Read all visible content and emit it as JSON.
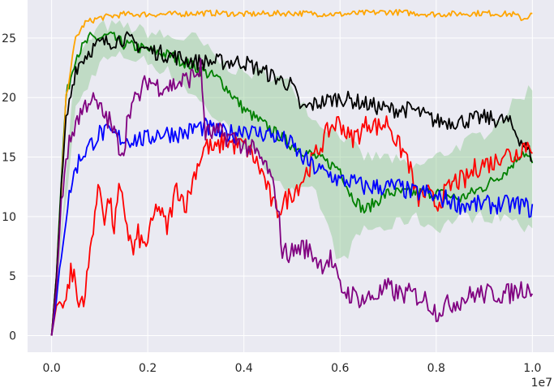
{
  "chart_data": {
    "type": "line",
    "title": "",
    "xlabel": "",
    "ylabel": "",
    "x_offset_label": "1e7",
    "xlim": [
      -0.05,
      1.045
    ],
    "ylim": [
      -1.4,
      28.2
    ],
    "x_ticks": [
      0.0,
      0.2,
      0.4,
      0.6,
      0.8,
      1.0
    ],
    "x_tick_labels": [
      "0.0",
      "0.2",
      "0.4",
      "0.6",
      "0.8",
      "1.0"
    ],
    "y_ticks": [
      0,
      5,
      10,
      15,
      20,
      25
    ],
    "y_tick_labels": [
      "0",
      "5",
      "10",
      "15",
      "20",
      "25"
    ],
    "grid": true,
    "colors": {
      "background": "#EAEAF2",
      "grid": "#FFFFFF",
      "orange": "#FFA500",
      "black": "#000000",
      "green": "#008000",
      "green_band": "#8FC98F",
      "red": "#FF0000",
      "blue": "#0000FF",
      "purple": "#800080"
    },
    "band": {
      "color": "green",
      "x": [
        0.0,
        0.05,
        0.1,
        0.15,
        0.2,
        0.25,
        0.3,
        0.35,
        0.4,
        0.45,
        0.5,
        0.55,
        0.6,
        0.65,
        0.7,
        0.75,
        0.8,
        0.85,
        0.9,
        0.95,
        1.0
      ],
      "lower": [
        0,
        19,
        23,
        23.5,
        23,
        22,
        20,
        18,
        16,
        14,
        12,
        12,
        6,
        9,
        9,
        10,
        9,
        10,
        10,
        10,
        8.5
      ],
      "upper": [
        0,
        23,
        26,
        26,
        25.5,
        25,
        25,
        23,
        22,
        22,
        21,
        18,
        17,
        15,
        15,
        14,
        15,
        16,
        17,
        19,
        21
      ]
    },
    "series": [
      {
        "color": "orange",
        "x": [
          0.0,
          0.01,
          0.02,
          0.03,
          0.05,
          0.07,
          0.1,
          0.15,
          0.2,
          0.25,
          0.3,
          0.35,
          0.4,
          0.5,
          0.6,
          0.7,
          0.8,
          0.9,
          0.96,
          0.98,
          1.0
        ],
        "y": [
          0,
          5,
          12,
          20,
          25,
          26.3,
          26.7,
          27,
          27,
          27,
          27.1,
          27.1,
          27,
          27.1,
          27,
          27.2,
          27,
          27.1,
          27,
          26.6,
          27
        ]
      },
      {
        "color": "black",
        "x": [
          0.0,
          0.01,
          0.02,
          0.03,
          0.05,
          0.08,
          0.1,
          0.15,
          0.2,
          0.25,
          0.3,
          0.35,
          0.4,
          0.45,
          0.5,
          0.52,
          0.55,
          0.6,
          0.65,
          0.7,
          0.75,
          0.8,
          0.85,
          0.9,
          0.95,
          1.0
        ],
        "y": [
          0,
          5,
          12,
          18,
          22.5,
          24,
          24.5,
          25,
          24,
          23.5,
          23,
          23,
          23,
          22,
          21,
          19,
          19.5,
          20,
          19.5,
          19,
          19,
          18,
          18,
          18.3,
          18,
          15
        ]
      },
      {
        "color": "green",
        "x": [
          0.0,
          0.01,
          0.02,
          0.03,
          0.05,
          0.08,
          0.1,
          0.12,
          0.15,
          0.2,
          0.25,
          0.3,
          0.35,
          0.4,
          0.45,
          0.5,
          0.55,
          0.6,
          0.62,
          0.65,
          0.7,
          0.75,
          0.8,
          0.85,
          0.9,
          0.95,
          0.98,
          1.0
        ],
        "y": [
          0,
          5,
          13,
          20,
          23.5,
          25,
          25,
          25.2,
          24.5,
          24,
          23.5,
          22.5,
          21.5,
          19,
          17.5,
          16,
          15,
          14,
          12,
          10.5,
          12,
          12,
          12,
          11.5,
          12.5,
          14,
          15.5,
          14.5
        ]
      },
      {
        "color": "red",
        "x": [
          0.0,
          0.01,
          0.02,
          0.03,
          0.04,
          0.05,
          0.055,
          0.06,
          0.07,
          0.08,
          0.09,
          0.1,
          0.11,
          0.12,
          0.13,
          0.14,
          0.15,
          0.16,
          0.17,
          0.18,
          0.19,
          0.2,
          0.22,
          0.24,
          0.26,
          0.28,
          0.3,
          0.32,
          0.34,
          0.36,
          0.38,
          0.4,
          0.42,
          0.44,
          0.46,
          0.47,
          0.48,
          0.5,
          0.52,
          0.54,
          0.56,
          0.58,
          0.6,
          0.62,
          0.64,
          0.66,
          0.68,
          0.7,
          0.72,
          0.74,
          0.76,
          0.78,
          0.8,
          0.82,
          0.84,
          0.86,
          0.88,
          0.9,
          0.92,
          0.94,
          0.96,
          0.98,
          1.0
        ],
        "y": [
          0,
          2.5,
          3,
          3,
          5.5,
          4.5,
          2,
          3,
          3.5,
          7,
          10.5,
          12.5,
          10,
          11.5,
          9,
          12,
          11,
          8.5,
          7,
          8.5,
          7.5,
          8,
          11,
          9,
          12.5,
          11,
          14,
          16,
          15.5,
          16.5,
          16,
          16,
          15,
          13.5,
          11,
          10.5,
          11,
          12,
          13,
          14.5,
          16,
          17.5,
          18,
          16.5,
          17,
          18,
          17.5,
          18,
          16,
          15,
          11.5,
          12,
          11,
          12,
          13,
          13,
          14,
          14.5,
          14.5,
          15.5,
          15,
          16,
          16
        ]
      },
      {
        "color": "blue",
        "x": [
          0.0,
          0.01,
          0.02,
          0.03,
          0.04,
          0.05,
          0.06,
          0.07,
          0.08,
          0.09,
          0.1,
          0.12,
          0.15,
          0.18,
          0.2,
          0.22,
          0.25,
          0.28,
          0.3,
          0.32,
          0.35,
          0.38,
          0.4,
          0.42,
          0.45,
          0.48,
          0.5,
          0.52,
          0.55,
          0.58,
          0.6,
          0.62,
          0.65,
          0.68,
          0.7,
          0.72,
          0.75,
          0.78,
          0.8,
          0.82,
          0.85,
          0.88,
          0.9,
          0.92,
          0.95,
          0.98,
          1.0
        ],
        "y": [
          0,
          3,
          7,
          10,
          12.5,
          14,
          15,
          15.5,
          16,
          16.5,
          17,
          17,
          16.5,
          16.5,
          16.5,
          17,
          17,
          17,
          17.5,
          17.5,
          17,
          17,
          17.5,
          17,
          17,
          16.5,
          16,
          15,
          14,
          13.5,
          13,
          13,
          12.5,
          12.5,
          12.5,
          12.5,
          12,
          12,
          11.5,
          11.5,
          11,
          11,
          11,
          11,
          11,
          11,
          10.5
        ]
      },
      {
        "color": "purple",
        "x": [
          0.0,
          0.01,
          0.02,
          0.03,
          0.05,
          0.08,
          0.1,
          0.12,
          0.14,
          0.15,
          0.16,
          0.18,
          0.2,
          0.22,
          0.25,
          0.28,
          0.3,
          0.31,
          0.32,
          0.35,
          0.38,
          0.4,
          0.42,
          0.45,
          0.47,
          0.48,
          0.5,
          0.52,
          0.54,
          0.56,
          0.58,
          0.6,
          0.62,
          0.65,
          0.68,
          0.7,
          0.72,
          0.75,
          0.78,
          0.8,
          0.82,
          0.85,
          0.88,
          0.9,
          0.92,
          0.95,
          0.98,
          1.0
        ],
        "y": [
          0,
          4,
          11,
          15,
          18,
          20,
          19,
          18,
          16,
          15.5,
          19,
          20,
          21.5,
          21,
          21,
          21.5,
          22,
          22.5,
          17,
          17,
          16.5,
          16,
          15.5,
          14,
          11,
          7,
          7,
          7.5,
          7,
          6,
          6.5,
          4,
          3.5,
          3,
          3.5,
          4,
          3.5,
          3.5,
          3,
          2,
          2.5,
          3,
          3.5,
          3.5,
          3.5,
          3.5,
          4,
          4
        ]
      }
    ]
  }
}
